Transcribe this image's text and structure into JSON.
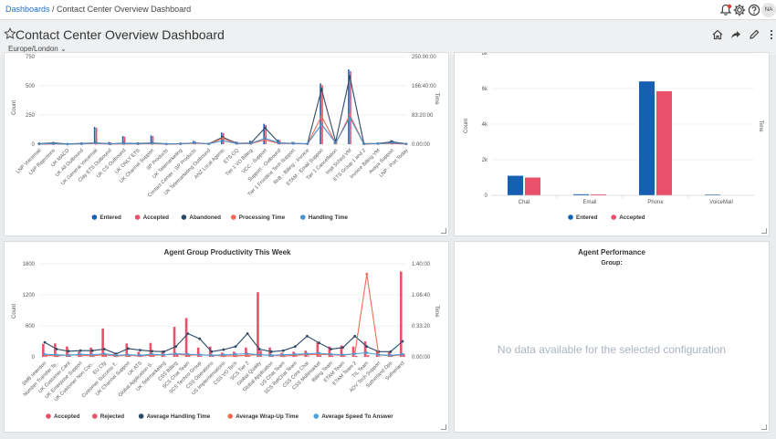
{
  "breadcrumb": {
    "root": "Dashboards",
    "separator": " / ",
    "current": "Contact Center Overview Dashboard"
  },
  "user": {
    "initials": "NA"
  },
  "header": {
    "title": "Contact Center Overview Dashboard",
    "timezone": "Europe/London"
  },
  "colors": {
    "blue": "#1560b0",
    "red": "#e9506a",
    "navy": "#2c4a66",
    "orange": "#f36b55",
    "teal": "#4a8fc9",
    "ltblue": "#4aa0db"
  },
  "chart_data": [
    {
      "type": "line",
      "title": "",
      "ylabel": "Count",
      "y2label": "Time",
      "ylim": [
        0,
        750
      ],
      "yticks": [
        "0",
        "250",
        "500",
        "750"
      ],
      "y2ticks": [
        "0:00:00",
        "83:20:00",
        "166:40:00",
        "250:00:00"
      ],
      "categories": [
        "LNP Voicemail",
        "LNP Rejections",
        "UK MACD",
        "UK All Outbound",
        "UK General Voicemail",
        "Clay ETS Outbound",
        "UK CS Outbound",
        "UK ONLY ETS",
        "UK Channel Support",
        "SP Products",
        "UK Telemarketing",
        "Contact Center - SP Products",
        "UK Telemarketing Outbound",
        "ANZ Local Agents",
        "ETS CQ",
        "Tier 1 VO Billing",
        "VCC - Support",
        "Support - Outbound",
        "Tier 1 Frontline Tech Support",
        "RnB - Billing - Invoice",
        "ETAM - Email Support",
        "Tier 1 Cancellation",
        "Impl Sched VM",
        "ETS Group 1 and 2",
        "Invoice Billing VM",
        "Avaya Support",
        "LNP - Port Today"
      ],
      "series": [
        {
          "name": "Entered",
          "values": [
            5,
            8,
            4,
            10,
            148,
            18,
            70,
            12,
            75,
            5,
            8,
            28,
            8,
            100,
            22,
            30,
            175,
            40,
            20,
            10,
            520,
            35,
            640,
            5,
            10,
            35,
            5
          ]
        },
        {
          "name": "Accepted",
          "values": [
            4,
            6,
            3,
            8,
            140,
            16,
            65,
            10,
            70,
            4,
            7,
            25,
            7,
            95,
            20,
            28,
            165,
            36,
            18,
            9,
            505,
            32,
            625,
            4,
            9,
            32,
            4
          ]
        },
        {
          "name": "Abandoned",
          "values": [
            5,
            10,
            2,
            6,
            12,
            4,
            8,
            6,
            10,
            3,
            5,
            10,
            4,
            60,
            8,
            10,
            140,
            10,
            6,
            4,
            470,
            20,
            580,
            5,
            6,
            20,
            3
          ]
        },
        {
          "name": "Processing Time",
          "values": [
            0,
            2,
            0,
            2,
            6,
            1,
            3,
            2,
            4,
            1,
            2,
            8,
            2,
            50,
            5,
            6,
            35,
            6,
            5,
            2,
            240,
            8,
            250,
            1,
            4,
            6,
            1
          ]
        },
        {
          "name": "Handling Time",
          "values": [
            2,
            4,
            1,
            3,
            10,
            2,
            6,
            3,
            8,
            2,
            3,
            12,
            3,
            30,
            6,
            8,
            50,
            10,
            6,
            3,
            170,
            12,
            230,
            2,
            5,
            12,
            2
          ]
        }
      ],
      "legend": "bottom"
    },
    {
      "type": "bar",
      "title": "",
      "ylabel": "Count",
      "y2label": "Time",
      "ylim": [
        0,
        8000
      ],
      "yticks": [
        "0",
        "2k",
        "4k",
        "6k",
        "8k"
      ],
      "categories": [
        "Chat",
        "Email",
        "Phone",
        "VoiceMail"
      ],
      "series": [
        {
          "name": "Entered",
          "values": [
            1100,
            60,
            6400,
            40
          ]
        },
        {
          "name": "Accepted",
          "values": [
            1000,
            50,
            5850,
            0
          ]
        }
      ],
      "legend": "bottom"
    },
    {
      "type": "bar",
      "title": "Agent Group Productivity This Week",
      "ylabel": "Count",
      "y2label": "Time",
      "ylim": [
        0,
        1800
      ],
      "yticks": [
        "0",
        "600",
        "1200",
        "1800"
      ],
      "y2ticks": [
        "0:00:00",
        "0:33:20",
        "1:06:40",
        "1:40:00"
      ],
      "categories": [
        "SMB retention",
        "Number Transfer Te..",
        "UK Customer Care",
        "UK Enterprise Support",
        "UK Customer Non Con..",
        "EU Cfg",
        "Customer Success T..",
        "UK Channel Support",
        "UK ATS",
        "Global Application S..",
        "UK Telemarketing",
        "CSS Billing",
        "SCS Chat Team",
        "SCS Techno Group",
        "CSS Operations",
        "US Implementations",
        "CSS VO Tech",
        "SCS Tier 2",
        "Global Quality",
        "Global Application",
        "US Chat Team",
        "SCS RefChat Team",
        "CSS Core Chat",
        "CSS Multimarket",
        "Billing Team",
        "ETAM Team",
        "ETAM Team 2",
        "TIL Team",
        "ADV Tech Support",
        "Sutherland Ops",
        "Sutherland"
      ],
      "series": [
        {
          "name": "Accepted",
          "values": [
            250,
            260,
            200,
            100,
            180,
            550,
            80,
            260,
            100,
            270,
            120,
            580,
            750,
            180,
            200,
            80,
            100,
            180,
            1250,
            180,
            80,
            100,
            120,
            280,
            200,
            220,
            200,
            300,
            120,
            100,
            1650
          ]
        },
        {
          "name": "Rejected",
          "values": [
            40,
            30,
            20,
            10,
            20,
            40,
            10,
            20,
            10,
            30,
            10,
            40,
            50,
            20,
            20,
            10,
            10,
            20,
            120,
            20,
            10,
            10,
            10,
            30,
            20,
            20,
            20,
            30,
            10,
            10,
            60
          ]
        },
        {
          "name": "Average Handling Time",
          "values": [
            280,
            150,
            110,
            120,
            120,
            150,
            60,
            160,
            130,
            110,
            100,
            200,
            450,
            350,
            100,
            140,
            200,
            450,
            150,
            100,
            120,
            200,
            400,
            270,
            150,
            180,
            400,
            200,
            100,
            100,
            300
          ]
        },
        {
          "name": "Average Wrap-Up Time",
          "values": [
            30,
            20,
            40,
            30,
            20,
            40,
            20,
            30,
            20,
            30,
            40,
            50,
            30,
            40,
            30,
            20,
            20,
            30,
            40,
            30,
            20,
            30,
            40,
            50,
            40,
            30,
            60,
            1600,
            40,
            20,
            40
          ]
        },
        {
          "name": "Average Speed To Answer",
          "values": [
            50,
            40,
            30,
            50,
            40,
            60,
            30,
            40,
            30,
            50,
            40,
            60,
            50,
            40,
            30,
            40,
            50,
            60,
            40,
            30,
            40,
            50,
            60,
            70,
            50,
            40,
            60,
            80,
            40,
            30,
            50
          ]
        }
      ],
      "legend": "bottom"
    }
  ],
  "panel4": {
    "title": "Agent Performance",
    "subtitle": "Group:",
    "message": "No data available for the selected configuration"
  }
}
